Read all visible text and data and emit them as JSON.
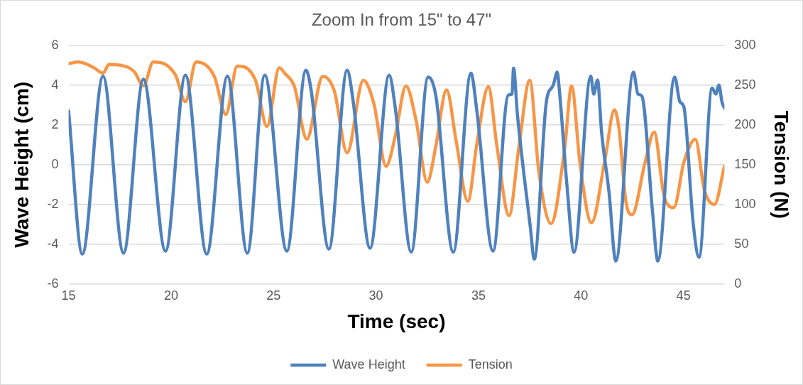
{
  "chart_data": {
    "type": "line",
    "title": "Zoom In from 15\" to 47\"",
    "xlabel": "Time (sec)",
    "ylabel": "Wave Height (cm)",
    "y2label": "Tension (N)",
    "xlim": [
      15,
      47
    ],
    "xticks": [
      15,
      20,
      25,
      30,
      35,
      40,
      45
    ],
    "ylim": [
      -6,
      6
    ],
    "yticks": [
      -6,
      -4,
      -2,
      0,
      2,
      4,
      6
    ],
    "y2lim": [
      0,
      300
    ],
    "y2ticks": [
      0,
      50,
      100,
      150,
      200,
      250,
      300
    ],
    "grid": "y",
    "legend": "bottom",
    "marker": "none",
    "line_style": "solid",
    "series": [
      {
        "name": "Wave Height",
        "color": "#4f81bd",
        "x": [
          15.0,
          15.67,
          16.68,
          17.68,
          18.65,
          19.73,
          20.7,
          21.74,
          22.75,
          23.72,
          24.57,
          25.65,
          26.58,
          26.84,
          27.7,
          28.59,
          28.89,
          29.71,
          30.64,
          30.94,
          31.72,
          32.54,
          32.92,
          33.77,
          34.63,
          34.92,
          35.71,
          36.45,
          36.64,
          36.71,
          36.9,
          37.53,
          37.72,
          38.31,
          38.65,
          38.84,
          38.95,
          39.32,
          39.66,
          40.48,
          40.62,
          40.81,
          41.0,
          41.37,
          41.7,
          42.56,
          42.78,
          42.97,
          43.49,
          43.75,
          44.57,
          44.83,
          45.02,
          45.47,
          45.76,
          46.4,
          46.58,
          46.73,
          46.88,
          47.0
        ],
        "values": [
          2.7,
          -4.5,
          4.45,
          -4.45,
          4.3,
          -4.35,
          4.5,
          -4.5,
          4.45,
          -4.45,
          4.5,
          -4.35,
          4.75,
          3.7,
          -4.25,
          4.75,
          3.15,
          -4.2,
          4.5,
          2.85,
          -4.4,
          4.4,
          3.45,
          -4.4,
          4.6,
          2.7,
          -4.35,
          3.5,
          3.55,
          4.85,
          2.5,
          -3.15,
          -4.75,
          3.15,
          4.0,
          4.65,
          3.7,
          -1.1,
          -4.4,
          4.45,
          3.55,
          4.25,
          1.7,
          -1.4,
          -4.85,
          4.65,
          3.55,
          3.45,
          -2.35,
          -4.85,
          4.4,
          3.15,
          2.9,
          -2.9,
          -4.65,
          3.85,
          3.55,
          4.0,
          3.15,
          2.85
        ]
      },
      {
        "name": "Tension",
        "color": "#f79646",
        "axis": "y2",
        "x": [
          15.0,
          15.48,
          16.23,
          16.68,
          16.97,
          17.53,
          18.2,
          18.65,
          19.13,
          20.21,
          20.7,
          21.22,
          22.11,
          22.67,
          23.23,
          24.12,
          24.68,
          25.28,
          25.54,
          26.02,
          26.62,
          27.4,
          27.96,
          28.59,
          29.38,
          29.9,
          30.49,
          30.94,
          31.46,
          31.95,
          32.5,
          32.91,
          33.44,
          33.92,
          34.48,
          34.93,
          35.48,
          35.89,
          36.49,
          36.97,
          37.5,
          37.94,
          38.54,
          39.21,
          39.54,
          39.95,
          40.51,
          41.18,
          41.63,
          41.85,
          42.19,
          42.49,
          43.12,
          43.57,
          44.05,
          44.53,
          45.02,
          45.58,
          46.02,
          46.51,
          47.0
        ],
        "values": [
          277,
          279,
          272,
          265,
          276,
          275,
          267,
          249,
          279,
          263,
          229,
          279,
          261,
          213,
          274,
          256,
          198,
          272,
          265,
          248,
          182,
          261,
          243,
          165,
          256,
          226,
          148,
          186,
          249,
          206,
          128,
          172,
          244,
          178,
          104,
          178,
          248,
          175,
          86,
          172,
          256,
          142,
          76,
          172,
          249,
          152,
          77,
          158,
          219,
          196,
          104,
          87,
          152,
          191,
          111,
          96,
          153,
          182,
          118,
          100,
          148
        ]
      }
    ]
  }
}
